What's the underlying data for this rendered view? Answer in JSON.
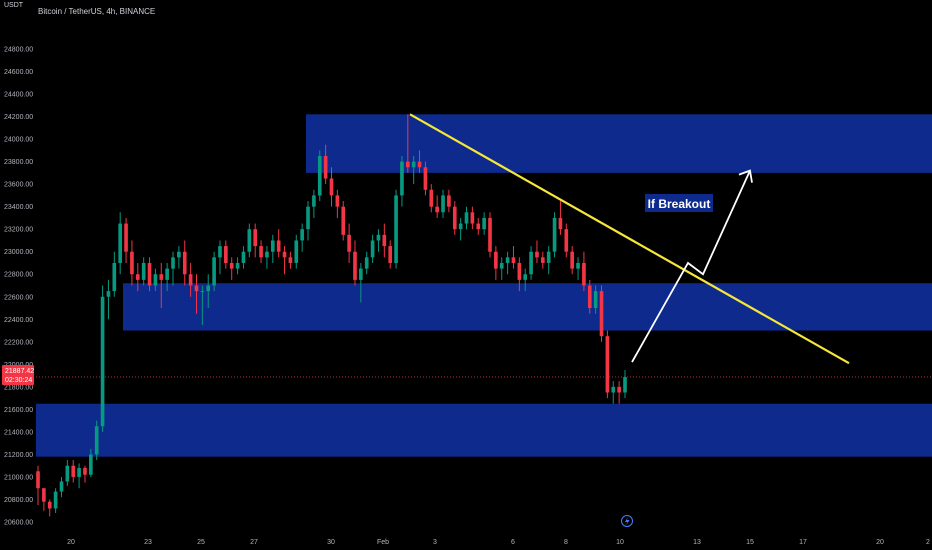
{
  "header": {
    "title": "Bitcoin / TetherUS, 4h, BINANCE",
    "unit": "USDT"
  },
  "price_label": {
    "value": "21887.42",
    "countdown": "02:30:24"
  },
  "annotation": {
    "text": "If Breakout"
  },
  "colors": {
    "background": "#000000",
    "zone": "#0d2a8c",
    "trendline": "#f5e63a",
    "arrow": "#ffffff",
    "bull": "#089981",
    "bear": "#f23645",
    "price_line": "#f23645"
  },
  "icons": {
    "bottom_marker": "lightning-icon"
  },
  "chart_data": {
    "type": "candlestick",
    "title": "Bitcoin / TetherUS, 4h, BINANCE",
    "y_ticks": [
      "20600.00",
      "20800.00",
      "21000.00",
      "21200.00",
      "21400.00",
      "21600.00",
      "21800.00",
      "22000.00",
      "22200.00",
      "22400.00",
      "22600.00",
      "22800.00",
      "23000.00",
      "23200.00",
      "23400.00",
      "23600.00",
      "23800.00",
      "24000.00",
      "24200.00",
      "24400.00",
      "24600.00",
      "24800.00"
    ],
    "x_ticks": [
      "20",
      "23",
      "25",
      "27",
      "30",
      "Feb",
      "3",
      "6",
      "8",
      "10",
      "13",
      "15",
      "17",
      "20",
      "2"
    ],
    "ylim": [
      20560,
      24960
    ],
    "current_price": 21887.42,
    "zones": [
      {
        "y_low": 23700,
        "y_high": 24220
      },
      {
        "y_low": 22300,
        "y_high": 22720
      },
      {
        "y_low": 21180,
        "y_high": 21650
      }
    ],
    "trendline": {
      "from_price": 24220,
      "to_price": 22010
    },
    "projected_path": [
      22020,
      22900,
      22800,
      23720
    ],
    "candles": [
      [
        21050,
        21100,
        20750,
        20900
      ],
      [
        20900,
        20900,
        20700,
        20780
      ],
      [
        20780,
        20800,
        20650,
        20720
      ],
      [
        20720,
        20900,
        20680,
        20870
      ],
      [
        20870,
        21000,
        20820,
        20960
      ],
      [
        20960,
        21150,
        20920,
        21100
      ],
      [
        21100,
        21150,
        20950,
        21000
      ],
      [
        21000,
        21120,
        20900,
        21080
      ],
      [
        21080,
        21100,
        20950,
        21020
      ],
      [
        21020,
        21250,
        21000,
        21200
      ],
      [
        21200,
        21500,
        21150,
        21450
      ],
      [
        21450,
        22700,
        21400,
        22600
      ],
      [
        22600,
        22750,
        22400,
        22650
      ],
      [
        22650,
        23000,
        22600,
        22900
      ],
      [
        22900,
        23350,
        22800,
        23250
      ],
      [
        23250,
        23300,
        22900,
        23000
      ],
      [
        23000,
        23100,
        22700,
        22800
      ],
      [
        22800,
        22900,
        22650,
        22750
      ],
      [
        22750,
        22950,
        22700,
        22900
      ],
      [
        22900,
        22950,
        22650,
        22700
      ],
      [
        22700,
        22850,
        22650,
        22800
      ],
      [
        22800,
        22900,
        22500,
        22750
      ],
      [
        22750,
        22900,
        22650,
        22850
      ],
      [
        22850,
        23000,
        22700,
        22950
      ],
      [
        22950,
        23050,
        22850,
        23000
      ],
      [
        23000,
        23100,
        22700,
        22800
      ],
      [
        22800,
        22900,
        22600,
        22700
      ],
      [
        22700,
        22800,
        22450,
        22650
      ],
      [
        22650,
        22700,
        22350,
        22650
      ],
      [
        22650,
        22800,
        22500,
        22700
      ],
      [
        22700,
        23000,
        22650,
        22950
      ],
      [
        22950,
        23100,
        22800,
        23050
      ],
      [
        23050,
        23100,
        22850,
        22900
      ],
      [
        22900,
        22950,
        22750,
        22850
      ],
      [
        22850,
        22950,
        22800,
        22900
      ],
      [
        22900,
        23050,
        22850,
        23000
      ],
      [
        23000,
        23250,
        22950,
        23200
      ],
      [
        23200,
        23250,
        22950,
        23050
      ],
      [
        23050,
        23100,
        22900,
        22950
      ],
      [
        22950,
        23050,
        22850,
        23000
      ],
      [
        23000,
        23150,
        22900,
        23100
      ],
      [
        23100,
        23200,
        22950,
        23000
      ],
      [
        23000,
        23050,
        22800,
        22950
      ],
      [
        22950,
        23000,
        22850,
        22900
      ],
      [
        22900,
        23150,
        22850,
        23100
      ],
      [
        23100,
        23250,
        23000,
        23200
      ],
      [
        23200,
        23450,
        23100,
        23400
      ],
      [
        23400,
        23550,
        23300,
        23500
      ],
      [
        23500,
        23900,
        23450,
        23850
      ],
      [
        23850,
        23950,
        23600,
        23650
      ],
      [
        23650,
        23750,
        23400,
        23500
      ],
      [
        23500,
        23550,
        23300,
        23400
      ],
      [
        23400,
        23450,
        23100,
        23150
      ],
      [
        23150,
        23250,
        22900,
        23000
      ],
      [
        23000,
        23100,
        22700,
        22750
      ],
      [
        22750,
        22900,
        22550,
        22850
      ],
      [
        22850,
        23000,
        22800,
        22950
      ],
      [
        22950,
        23150,
        22900,
        23100
      ],
      [
        23100,
        23200,
        23000,
        23150
      ],
      [
        23150,
        23250,
        22950,
        23050
      ],
      [
        23050,
        23100,
        22850,
        22900
      ],
      [
        22900,
        23550,
        22850,
        23500
      ],
      [
        23500,
        23850,
        23400,
        23800
      ],
      [
        23800,
        24220,
        23700,
        23750
      ],
      [
        23750,
        23850,
        23600,
        23800
      ],
      [
        23800,
        23900,
        23700,
        23750
      ],
      [
        23750,
        23800,
        23500,
        23550
      ],
      [
        23550,
        23600,
        23350,
        23400
      ],
      [
        23400,
        23500,
        23300,
        23350
      ],
      [
        23350,
        23550,
        23300,
        23500
      ],
      [
        23500,
        23550,
        23350,
        23400
      ],
      [
        23400,
        23450,
        23150,
        23200
      ],
      [
        23200,
        23300,
        23100,
        23250
      ],
      [
        23250,
        23400,
        23200,
        23350
      ],
      [
        23350,
        23400,
        23200,
        23250
      ],
      [
        23250,
        23300,
        23150,
        23200
      ],
      [
        23200,
        23350,
        23150,
        23300
      ],
      [
        23300,
        23350,
        22950,
        23000
      ],
      [
        23000,
        23050,
        22750,
        22850
      ],
      [
        22850,
        22950,
        22750,
        22900
      ],
      [
        22900,
        23000,
        22800,
        22950
      ],
      [
        22950,
        23050,
        22850,
        22900
      ],
      [
        22900,
        22950,
        22650,
        22750
      ],
      [
        22750,
        22850,
        22650,
        22800
      ],
      [
        22800,
        23050,
        22750,
        23000
      ],
      [
        23000,
        23100,
        22900,
        22950
      ],
      [
        22950,
        23000,
        22850,
        22900
      ],
      [
        22900,
        23050,
        22800,
        23000
      ],
      [
        23000,
        23350,
        22950,
        23300
      ],
      [
        23300,
        23450,
        23150,
        23200
      ],
      [
        23200,
        23250,
        22950,
        23000
      ],
      [
        23000,
        23050,
        22800,
        22850
      ],
      [
        22850,
        22950,
        22750,
        22900
      ],
      [
        22900,
        23000,
        22650,
        22700
      ],
      [
        22700,
        22750,
        22450,
        22500
      ],
      [
        22500,
        22700,
        22450,
        22650
      ],
      [
        22650,
        22700,
        22200,
        22250
      ],
      [
        22250,
        22300,
        21700,
        21750
      ],
      [
        21750,
        21850,
        21650,
        21800
      ],
      [
        21800,
        21850,
        21650,
        21750
      ],
      [
        21750,
        21950,
        21700,
        21887
      ]
    ]
  }
}
